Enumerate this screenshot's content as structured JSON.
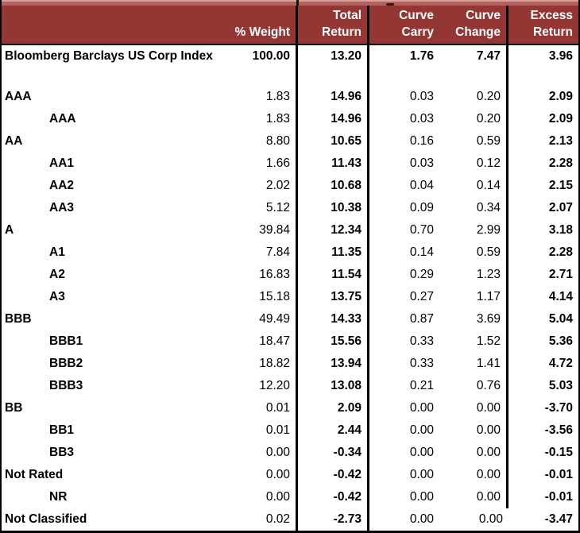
{
  "colors": {
    "header_bg": "#943634",
    "header_text": "#ffffff",
    "title_strip": "#b4625f",
    "title_strip_highlight": "#d9a19c",
    "border": "#000000",
    "body_bg": "#ffffff",
    "body_text": "#000000"
  },
  "header": {
    "columns": [
      {
        "key": "label",
        "line1": "",
        "line2": ""
      },
      {
        "key": "weight",
        "line1": "",
        "line2": "% Weight"
      },
      {
        "key": "total_return",
        "line1": "Total",
        "line2": "Return"
      },
      {
        "key": "curve_carry",
        "line1": "Curve",
        "line2": "Carry"
      },
      {
        "key": "curve_change",
        "line1": "Curve",
        "line2": "Change"
      },
      {
        "key": "excess_return",
        "line1": "Excess",
        "line2": "Return"
      }
    ]
  },
  "rows": [
    {
      "label": "Bloomberg Barclays US Corp Index",
      "indent": 0,
      "weight": "100.00",
      "total_return": "13.20",
      "curve_carry": "1.76",
      "curve_change": "7.47",
      "excess_return": "3.96",
      "bold_all": true
    },
    {
      "blank": true
    },
    {
      "label": "AAA",
      "indent": 0,
      "weight": "1.83",
      "total_return": "14.96",
      "curve_carry": "0.03",
      "curve_change": "0.20",
      "excess_return": "2.09"
    },
    {
      "label": "AAA",
      "indent": 1,
      "weight": "1.83",
      "total_return": "14.96",
      "curve_carry": "0.03",
      "curve_change": "0.20",
      "excess_return": "2.09"
    },
    {
      "label": "AA",
      "indent": 0,
      "weight": "8.80",
      "total_return": "10.65",
      "curve_carry": "0.16",
      "curve_change": "0.59",
      "excess_return": "2.13"
    },
    {
      "label": "AA1",
      "indent": 1,
      "weight": "1.66",
      "total_return": "11.43",
      "curve_carry": "0.03",
      "curve_change": "0.12",
      "excess_return": "2.28"
    },
    {
      "label": "AA2",
      "indent": 1,
      "weight": "2.02",
      "total_return": "10.68",
      "curve_carry": "0.04",
      "curve_change": "0.14",
      "excess_return": "2.15"
    },
    {
      "label": "AA3",
      "indent": 1,
      "weight": "5.12",
      "total_return": "10.38",
      "curve_carry": "0.09",
      "curve_change": "0.34",
      "excess_return": "2.07"
    },
    {
      "label": "A",
      "indent": 0,
      "weight": "39.84",
      "total_return": "12.34",
      "curve_carry": "0.70",
      "curve_change": "2.99",
      "excess_return": "3.18"
    },
    {
      "label": "A1",
      "indent": 1,
      "weight": "7.84",
      "total_return": "11.35",
      "curve_carry": "0.14",
      "curve_change": "0.59",
      "excess_return": "2.28"
    },
    {
      "label": "A2",
      "indent": 1,
      "weight": "16.83",
      "total_return": "11.54",
      "curve_carry": "0.29",
      "curve_change": "1.23",
      "excess_return": "2.71"
    },
    {
      "label": "A3",
      "indent": 1,
      "weight": "15.18",
      "total_return": "13.75",
      "curve_carry": "0.27",
      "curve_change": "1.17",
      "excess_return": "4.14"
    },
    {
      "label": "BBB",
      "indent": 0,
      "weight": "49.49",
      "total_return": "14.33",
      "curve_carry": "0.87",
      "curve_change": "3.69",
      "excess_return": "5.04"
    },
    {
      "label": "BBB1",
      "indent": 1,
      "weight": "18.47",
      "total_return": "15.56",
      "curve_carry": "0.33",
      "curve_change": "1.52",
      "excess_return": "5.36"
    },
    {
      "label": "BBB2",
      "indent": 1,
      "weight": "18.82",
      "total_return": "13.94",
      "curve_carry": "0.33",
      "curve_change": "1.41",
      "excess_return": "4.72"
    },
    {
      "label": "BBB3",
      "indent": 1,
      "weight": "12.20",
      "total_return": "13.08",
      "curve_carry": "0.21",
      "curve_change": "0.76",
      "excess_return": "5.03"
    },
    {
      "label": "BB",
      "indent": 0,
      "weight": "0.01",
      "total_return": "2.09",
      "curve_carry": "0.00",
      "curve_change": "0.00",
      "excess_return": "-3.70"
    },
    {
      "label": "BB1",
      "indent": 1,
      "weight": "0.01",
      "total_return": "2.44",
      "curve_carry": "0.00",
      "curve_change": "0.00",
      "excess_return": "-3.56"
    },
    {
      "label": "BB3",
      "indent": 1,
      "weight": "0.00",
      "total_return": "-0.34",
      "curve_carry": "0.00",
      "curve_change": "0.00",
      "excess_return": "-0.15"
    },
    {
      "label": "Not Rated",
      "indent": 0,
      "weight": "0.00",
      "total_return": "-0.42",
      "curve_carry": "0.00",
      "curve_change": "0.00",
      "excess_return": "-0.01"
    },
    {
      "label": "NR",
      "indent": 1,
      "weight": "0.00",
      "total_return": "-0.42",
      "curve_carry": "0.00",
      "curve_change": "0.00",
      "excess_return": "-0.01"
    },
    {
      "label": "Not Classified",
      "indent": 0,
      "weight": "0.02",
      "total_return": "-2.73",
      "curve_carry": "0.00",
      "curve_change": "0.00",
      "excess_return": "-3.47"
    }
  ]
}
